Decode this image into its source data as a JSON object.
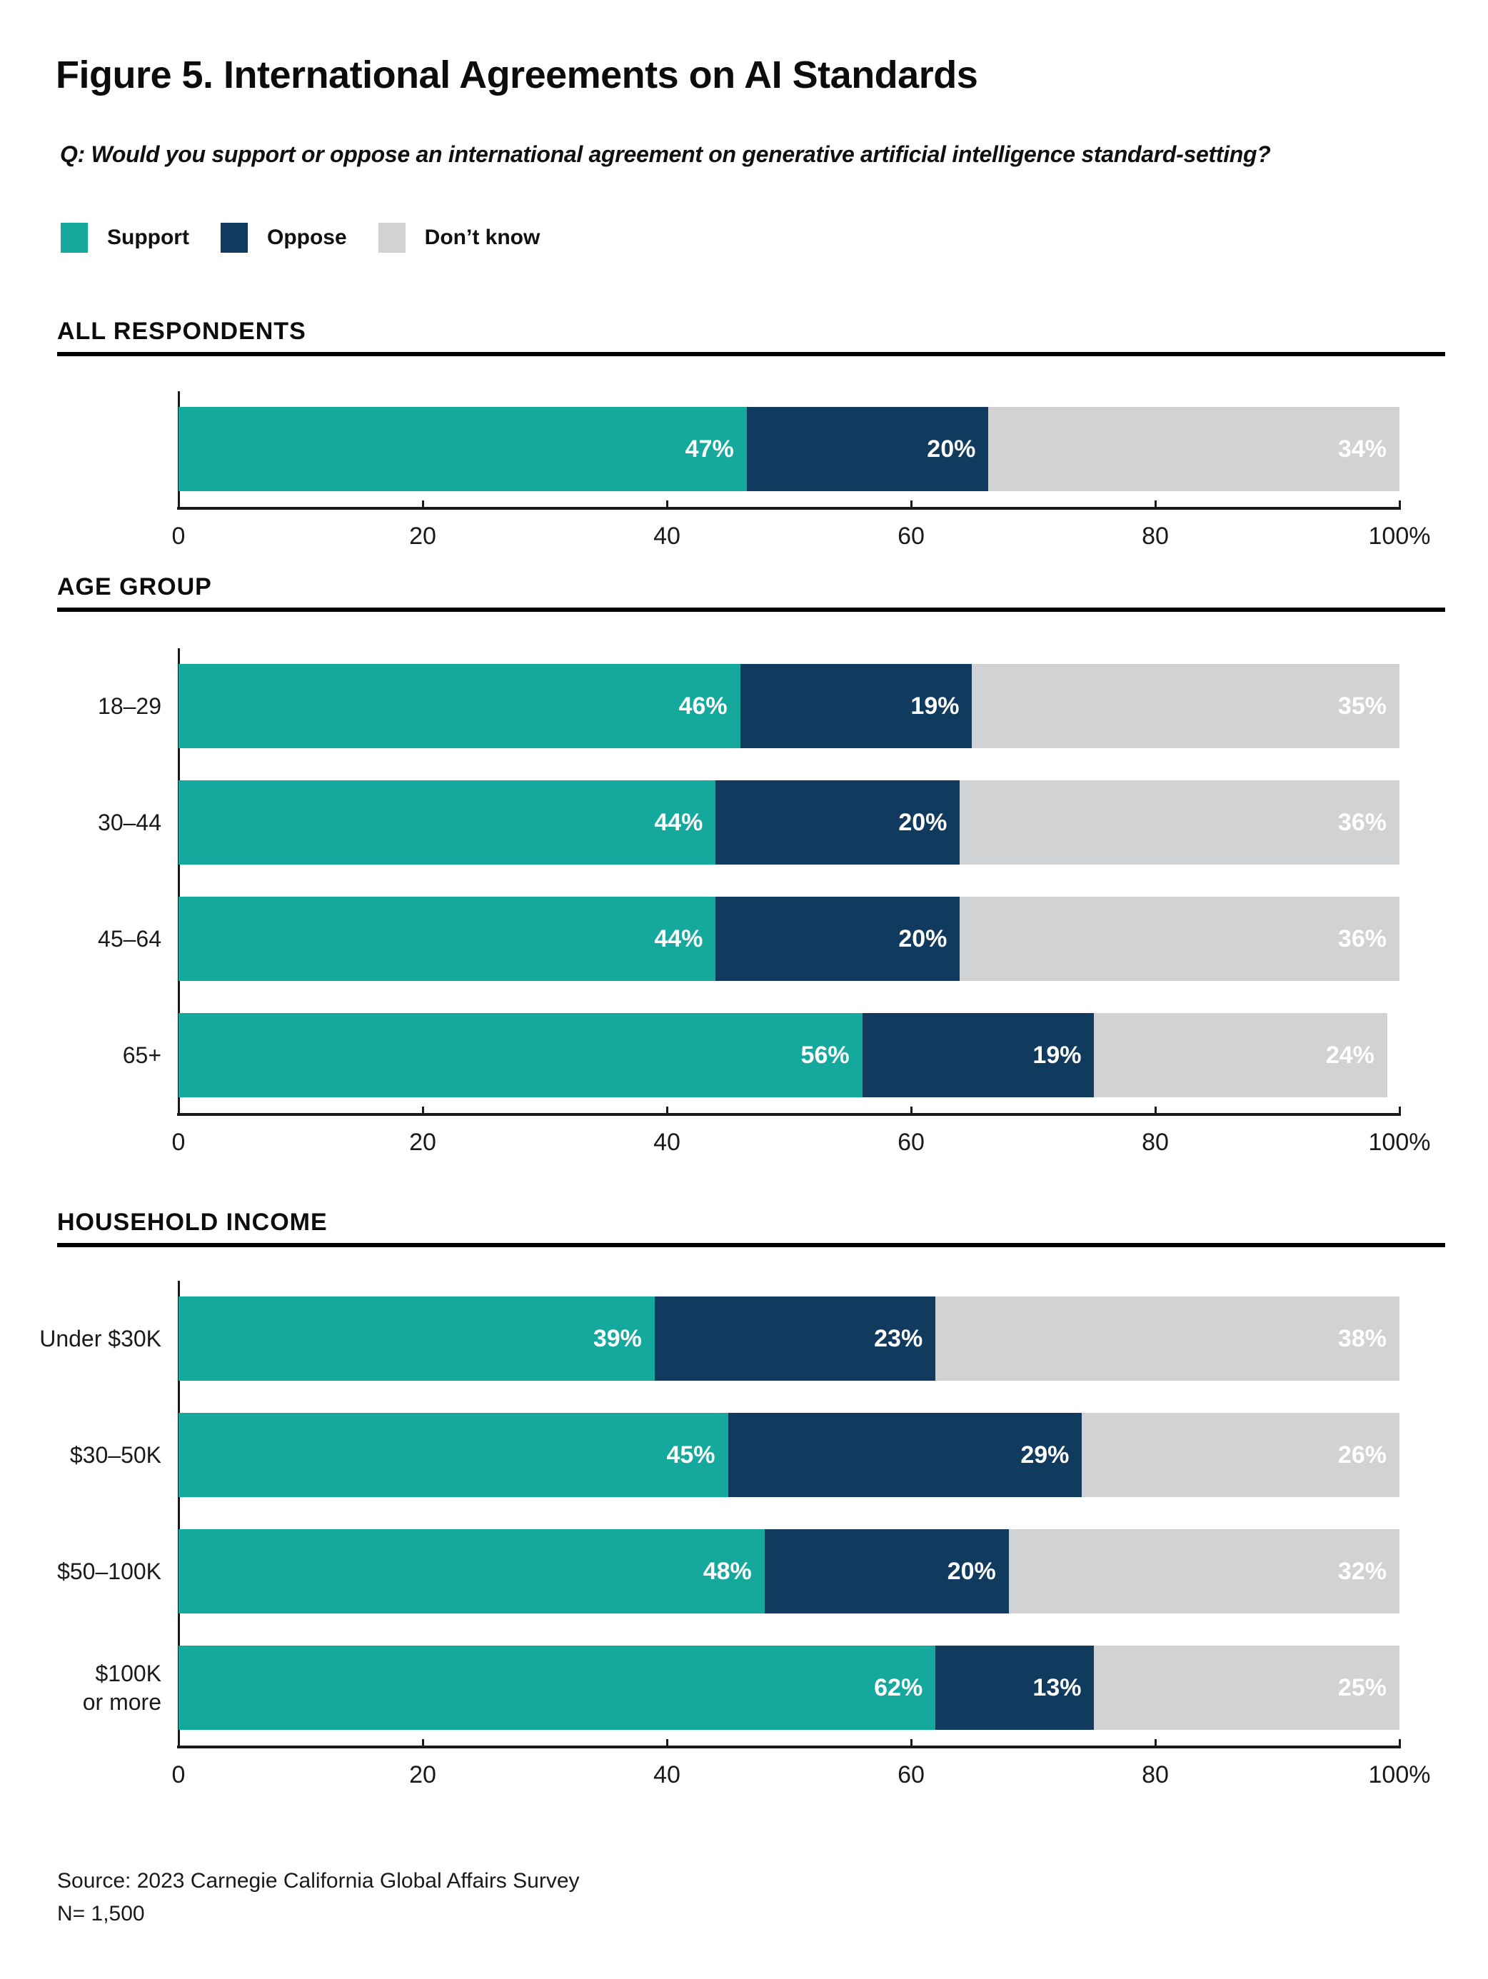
{
  "title": "Figure 5. International Agreements on AI Standards",
  "question": "Q: Would you support or oppose an international agreement on generative artificial intelligence standard-setting?",
  "colors": {
    "support": "#15A89D",
    "oppose": "#113A5F",
    "dont_know": "#D0D2D3",
    "axis": "#1a1a1a",
    "rule": "#000000",
    "value_label": "#ffffff"
  },
  "legend": [
    {
      "label": "Support",
      "color": "#15A89D"
    },
    {
      "label": "Oppose",
      "color": "#113A5F"
    },
    {
      "label": "Don’t know",
      "color": "#D0D2D3"
    }
  ],
  "chart_data": [
    {
      "type": "bar",
      "orientation": "horizontal-stacked",
      "section": "ALL RESPONDENTS",
      "categories": [
        ""
      ],
      "series": [
        {
          "name": "Support",
          "color": "#15A89D",
          "values": [
            47
          ]
        },
        {
          "name": "Oppose",
          "color": "#113A5F",
          "values": [
            20
          ]
        },
        {
          "name": "Don’t know",
          "color": "#D0D2D3",
          "values": [
            34
          ]
        }
      ],
      "value_suffix": "%",
      "xlim": [
        0,
        100
      ],
      "xticks": [
        0,
        20,
        40,
        60,
        80,
        100
      ],
      "xtick_labels": [
        "0",
        "20",
        "40",
        "60",
        "80",
        "100%"
      ],
      "grid": false,
      "legend_position": "top"
    },
    {
      "type": "bar",
      "orientation": "horizontal-stacked",
      "section": "AGE GROUP",
      "categories": [
        "18–29",
        "30–44",
        "45–64",
        "65+"
      ],
      "series": [
        {
          "name": "Support",
          "color": "#15A89D",
          "values": [
            46,
            44,
            44,
            56
          ]
        },
        {
          "name": "Oppose",
          "color": "#113A5F",
          "values": [
            19,
            20,
            20,
            19
          ]
        },
        {
          "name": "Don’t know",
          "color": "#D0D2D3",
          "values": [
            35,
            36,
            36,
            24
          ]
        }
      ],
      "value_suffix": "%",
      "xlim": [
        0,
        100
      ],
      "xticks": [
        0,
        20,
        40,
        60,
        80,
        100
      ],
      "xtick_labels": [
        "0",
        "20",
        "40",
        "60",
        "80",
        "100%"
      ],
      "grid": false,
      "legend_position": "top"
    },
    {
      "type": "bar",
      "orientation": "horizontal-stacked",
      "section": "HOUSEHOLD INCOME",
      "categories": [
        "Under $30K",
        "$30–50K",
        "$50–100K",
        "$100K\nor more"
      ],
      "series": [
        {
          "name": "Support",
          "color": "#15A89D",
          "values": [
            39,
            45,
            48,
            62
          ]
        },
        {
          "name": "Oppose",
          "color": "#113A5F",
          "values": [
            23,
            29,
            20,
            13
          ]
        },
        {
          "name": "Don’t know",
          "color": "#D0D2D3",
          "values": [
            38,
            26,
            32,
            25
          ]
        }
      ],
      "value_suffix": "%",
      "xlim": [
        0,
        100
      ],
      "xticks": [
        0,
        20,
        40,
        60,
        80,
        100
      ],
      "xtick_labels": [
        "0",
        "20",
        "40",
        "60",
        "80",
        "100%"
      ],
      "grid": false,
      "legend_position": "top"
    }
  ],
  "source": "Source: 2023 Carnegie California Global Affairs Survey",
  "n_label": "N= 1,500"
}
